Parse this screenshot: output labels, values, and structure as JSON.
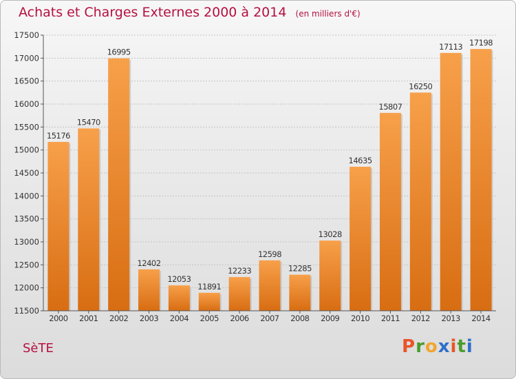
{
  "chart_data": {
    "type": "bar",
    "title": "Achats et Charges Externes 2000 à 2014",
    "subtitle": "(en milliers d'€)",
    "categories": [
      "2000",
      "2001",
      "2002",
      "2003",
      "2004",
      "2005",
      "2006",
      "2007",
      "2008",
      "2009",
      "2010",
      "2011",
      "2012",
      "2013",
      "2014"
    ],
    "values": [
      15176,
      15470,
      16995,
      12402,
      12053,
      11891,
      12233,
      12598,
      12285,
      13028,
      14635,
      15807,
      16250,
      17113,
      17198
    ],
    "ylim": [
      11500,
      17500
    ],
    "yticks": [
      11500,
      12000,
      12500,
      13000,
      13500,
      14000,
      14500,
      15000,
      15500,
      16000,
      16500,
      17000,
      17500
    ],
    "grid": true,
    "bar_color": "#f28a2a"
  },
  "footer": {
    "city": "SèTE",
    "brand": {
      "name": "Proxiti",
      "letters": [
        "P",
        "r",
        "o",
        "x",
        "i",
        "t",
        "i"
      ],
      "colors": [
        "#e8552a",
        "#4a9c2d",
        "#f2a531",
        "#2f6fc9",
        "#e8552a",
        "#4a9c2d",
        "#2f6fc9"
      ]
    }
  }
}
